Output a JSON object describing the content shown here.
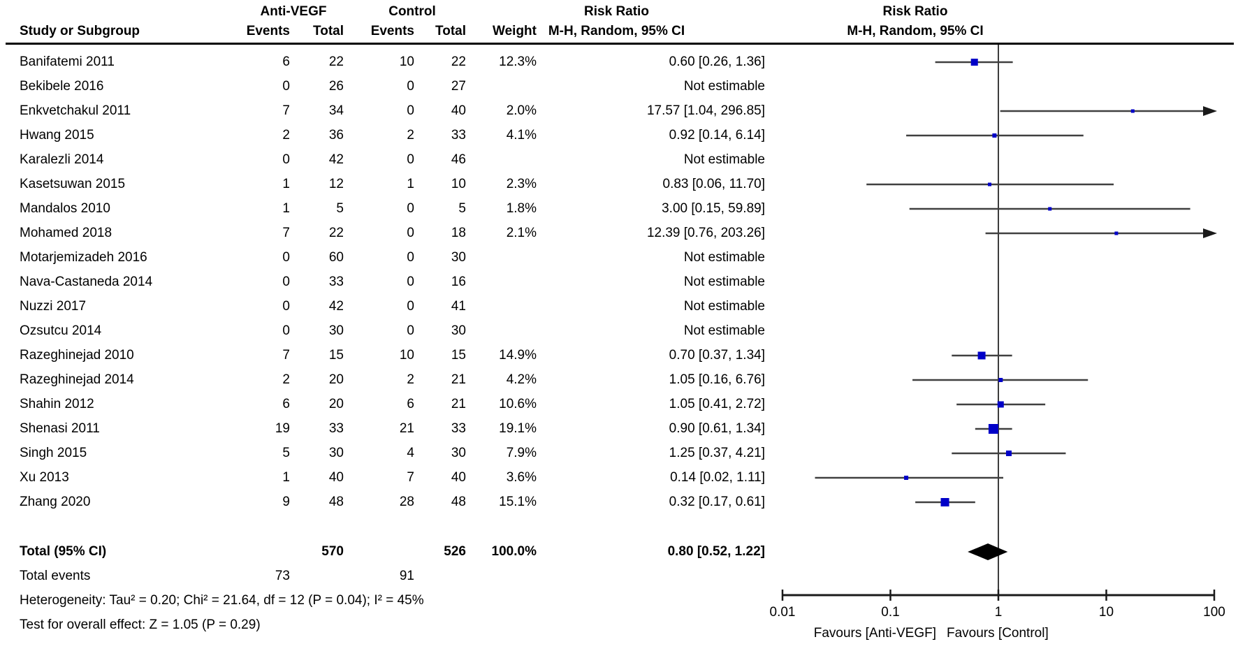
{
  "header": {
    "group1": "Anti-VEGF",
    "group2": "Control",
    "col_study": "Study or Subgroup",
    "col_events": "Events",
    "col_total": "Total",
    "col_weight": "Weight",
    "rr_title": "Risk Ratio",
    "rr_subtitle": "M-H, Random, 95% CI"
  },
  "chart_data": {
    "type": "forest",
    "effect_measure": "Risk Ratio, M-H, Random, 95% CI",
    "x_axis": {
      "scale": "log",
      "ticks": [
        "0.01",
        "0.1",
        "1",
        "10",
        "100"
      ],
      "tick_values": [
        0.01,
        0.1,
        1,
        10,
        100
      ],
      "label_left": "Favours [Anti-VEGF]",
      "label_right": "Favours [Control]"
    },
    "studies": [
      {
        "name": "Banifatemi 2011",
        "events1": "6",
        "total1": "22",
        "events2": "10",
        "total2": "22",
        "weight": "12.3%",
        "weight_value": 12.3,
        "rr_text": "0.60 [0.26, 1.36]",
        "rr": 0.6,
        "lo": 0.26,
        "hi": 1.36
      },
      {
        "name": "Bekibele 2016",
        "events1": "0",
        "total1": "26",
        "events2": "0",
        "total2": "27",
        "weight": "",
        "weight_value": null,
        "rr_text": "Not estimable",
        "rr": null,
        "lo": null,
        "hi": null
      },
      {
        "name": "Enkvetchakul 2011",
        "events1": "7",
        "total1": "34",
        "events2": "0",
        "total2": "40",
        "weight": "2.0%",
        "weight_value": 2.0,
        "rr_text": "17.57 [1.04, 296.85]",
        "rr": 17.57,
        "lo": 1.04,
        "hi": 296.85
      },
      {
        "name": "Hwang 2015",
        "events1": "2",
        "total1": "36",
        "events2": "2",
        "total2": "33",
        "weight": "4.1%",
        "weight_value": 4.1,
        "rr_text": "0.92 [0.14, 6.14]",
        "rr": 0.92,
        "lo": 0.14,
        "hi": 6.14
      },
      {
        "name": "Karalezli 2014",
        "events1": "0",
        "total1": "42",
        "events2": "0",
        "total2": "46",
        "weight": "",
        "weight_value": null,
        "rr_text": "Not estimable",
        "rr": null,
        "lo": null,
        "hi": null
      },
      {
        "name": "Kasetsuwan 2015",
        "events1": "1",
        "total1": "12",
        "events2": "1",
        "total2": "10",
        "weight": "2.3%",
        "weight_value": 2.3,
        "rr_text": "0.83 [0.06, 11.70]",
        "rr": 0.83,
        "lo": 0.06,
        "hi": 11.7
      },
      {
        "name": "Mandalos 2010",
        "events1": "1",
        "total1": "5",
        "events2": "0",
        "total2": "5",
        "weight": "1.8%",
        "weight_value": 1.8,
        "rr_text": "3.00 [0.15, 59.89]",
        "rr": 3.0,
        "lo": 0.15,
        "hi": 59.89
      },
      {
        "name": "Mohamed 2018",
        "events1": "7",
        "total1": "22",
        "events2": "0",
        "total2": "18",
        "weight": "2.1%",
        "weight_value": 2.1,
        "rr_text": "12.39 [0.76, 203.26]",
        "rr": 12.39,
        "lo": 0.76,
        "hi": 203.26
      },
      {
        "name": "Motarjemizadeh 2016",
        "events1": "0",
        "total1": "60",
        "events2": "0",
        "total2": "30",
        "weight": "",
        "weight_value": null,
        "rr_text": "Not estimable",
        "rr": null,
        "lo": null,
        "hi": null
      },
      {
        "name": "Nava-Castaneda 2014",
        "events1": "0",
        "total1": "33",
        "events2": "0",
        "total2": "16",
        "weight": "",
        "weight_value": null,
        "rr_text": "Not estimable",
        "rr": null,
        "lo": null,
        "hi": null
      },
      {
        "name": "Nuzzi 2017",
        "events1": "0",
        "total1": "42",
        "events2": "0",
        "total2": "41",
        "weight": "",
        "weight_value": null,
        "rr_text": "Not estimable",
        "rr": null,
        "lo": null,
        "hi": null
      },
      {
        "name": "Ozsutcu 2014",
        "events1": "0",
        "total1": "30",
        "events2": "0",
        "total2": "30",
        "weight": "",
        "weight_value": null,
        "rr_text": "Not estimable",
        "rr": null,
        "lo": null,
        "hi": null
      },
      {
        "name": "Razeghinejad 2010",
        "events1": "7",
        "total1": "15",
        "events2": "10",
        "total2": "15",
        "weight": "14.9%",
        "weight_value": 14.9,
        "rr_text": "0.70 [0.37, 1.34]",
        "rr": 0.7,
        "lo": 0.37,
        "hi": 1.34
      },
      {
        "name": "Razeghinejad 2014",
        "events1": "2",
        "total1": "20",
        "events2": "2",
        "total2": "21",
        "weight": "4.2%",
        "weight_value": 4.2,
        "rr_text": "1.05 [0.16, 6.76]",
        "rr": 1.05,
        "lo": 0.16,
        "hi": 6.76
      },
      {
        "name": "Shahin 2012",
        "events1": "6",
        "total1": "20",
        "events2": "6",
        "total2": "21",
        "weight": "10.6%",
        "weight_value": 10.6,
        "rr_text": "1.05 [0.41, 2.72]",
        "rr": 1.05,
        "lo": 0.41,
        "hi": 2.72
      },
      {
        "name": "Shenasi 2011",
        "events1": "19",
        "total1": "33",
        "events2": "21",
        "total2": "33",
        "weight": "19.1%",
        "weight_value": 19.1,
        "rr_text": "0.90 [0.61, 1.34]",
        "rr": 0.9,
        "lo": 0.61,
        "hi": 1.34
      },
      {
        "name": "Singh 2015",
        "events1": "5",
        "total1": "30",
        "events2": "4",
        "total2": "30",
        "weight": "7.9%",
        "weight_value": 7.9,
        "rr_text": "1.25 [0.37, 4.21]",
        "rr": 1.25,
        "lo": 0.37,
        "hi": 4.21
      },
      {
        "name": "Xu 2013",
        "events1": "1",
        "total1": "40",
        "events2": "7",
        "total2": "40",
        "weight": "3.6%",
        "weight_value": 3.6,
        "rr_text": "0.14 [0.02, 1.11]",
        "rr": 0.14,
        "lo": 0.02,
        "hi": 1.11
      },
      {
        "name": "Zhang 2020",
        "events1": "9",
        "total1": "48",
        "events2": "28",
        "total2": "48",
        "weight": "15.1%",
        "weight_value": 15.1,
        "rr_text": "0.32 [0.17, 0.61]",
        "rr": 0.32,
        "lo": 0.17,
        "hi": 0.61
      }
    ],
    "total": {
      "rr": 0.8,
      "lo": 0.52,
      "hi": 1.22
    }
  },
  "footer": {
    "total_label": "Total (95% CI)",
    "total_t1": "570",
    "total_t2": "526",
    "total_weight": "100.0%",
    "total_rr": "0.80 [0.52, 1.22]",
    "total_events_label": "Total events",
    "total_e1": "73",
    "total_e2": "91",
    "heterogeneity": "Heterogeneity: Tau² = 0.20; Chi² = 21.64, df = 12 (P = 0.04); I² = 45%",
    "overall_effect": "Test for overall effect: Z = 1.05 (P = 0.29)"
  },
  "colors": {
    "square": "#0000C8",
    "ci_line": "#404040",
    "no_effect_line": "#3c3c3c",
    "axis": "#1a1a1a",
    "diamond": "#000000"
  }
}
